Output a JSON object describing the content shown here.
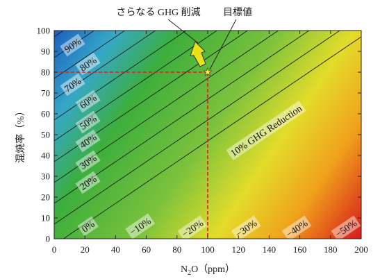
{
  "chart_data": {
    "type": "heatmap",
    "subtype": "contour",
    "xlabel": "N",
    "xlabel_sub": "2",
    "xlabel_rest": "O（ppm）",
    "ylabel": "混焼率（%）",
    "xlim": [
      0,
      200
    ],
    "ylim": [
      0,
      100
    ],
    "xticks": [
      "0",
      "20",
      "40",
      "60",
      "80",
      "100",
      "120",
      "140",
      "160",
      "180",
      "200"
    ],
    "yticks": [
      "0",
      "10",
      "20",
      "30",
      "40",
      "50",
      "60",
      "70",
      "80",
      "90",
      "100"
    ],
    "grid": false,
    "colormap": [
      "#d7191c",
      "#f0a21c",
      "#e3dc2a",
      "#7cc23c",
      "#3cae3c",
      "#36a8c6",
      "#1b5fc0"
    ],
    "contours": [
      {
        "label": "90%",
        "value": 90,
        "x0": 0,
        "y0": 137.0
      },
      {
        "label": "80%",
        "value": 80,
        "x0": 0,
        "y0": 127.0
      },
      {
        "label": "70%",
        "value": 70,
        "x0": 0,
        "y0": 117.0
      },
      {
        "label": "60%",
        "value": 60,
        "x0": 0,
        "y0": 107.0
      },
      {
        "label": "50%",
        "value": 50,
        "x0": 0,
        "y0": 97.0
      },
      {
        "label": "40%",
        "value": 40,
        "x0": 0,
        "y0": 87.0
      },
      {
        "label": "30%",
        "value": 30,
        "x0": 0,
        "y0": 77.0
      },
      {
        "label": "20%",
        "value": 20,
        "x0": 0,
        "y0": 67.0
      },
      {
        "label": "10% GHG Reduction",
        "value": 10,
        "x0": 0,
        "y0": 57.0
      },
      {
        "label": "0%",
        "value": 0,
        "x0": 0,
        "y0": 47.0
      },
      {
        "label": "−10%",
        "value": -10,
        "x0": 0,
        "y0": 37.0
      },
      {
        "label": "−20%",
        "value": -20,
        "x0": 0,
        "y0": 27.0
      },
      {
        "label": "−30%",
        "value": -30,
        "x0": 0,
        "y0": 17.0
      },
      {
        "label": "−40%",
        "value": -40,
        "x0": 0,
        "y0": 7.0
      },
      {
        "label": "−50%",
        "value": -50,
        "x0": 0,
        "y0": -3.0
      }
    ],
    "contour_slope": 0.5,
    "contour_label_positions": [
      {
        "label": "90%",
        "x": 12,
        "y": 93
      },
      {
        "label": "80%",
        "x": 22,
        "y": 84
      },
      {
        "label": "70%",
        "x": 12,
        "y": 74
      },
      {
        "label": "60%",
        "x": 22,
        "y": 66
      },
      {
        "label": "50%",
        "x": 22,
        "y": 56
      },
      {
        "label": "40%",
        "x": 22,
        "y": 47
      },
      {
        "label": "30%",
        "x": 22,
        "y": 37
      },
      {
        "label": "20%",
        "x": 22,
        "y": 27
      },
      {
        "label": "10% GHG Reduction",
        "x": 138,
        "y": 52
      },
      {
        "label": "0%",
        "x": 22,
        "y": 6
      },
      {
        "label": "−10%",
        "x": 56,
        "y": 6
      },
      {
        "label": "−20%",
        "x": 90,
        "y": 5
      },
      {
        "label": "−30%",
        "x": 125,
        "y": 5
      },
      {
        "label": "−40%",
        "x": 158,
        "y": 5
      },
      {
        "label": "−50%",
        "x": 190,
        "y": 5
      }
    ],
    "target_point": {
      "x": 100,
      "y": 80,
      "label": "目標値"
    },
    "further_reduction_label": "さらなる GHG 削減",
    "further_reduction_arrow_color": "#e9e21b"
  }
}
